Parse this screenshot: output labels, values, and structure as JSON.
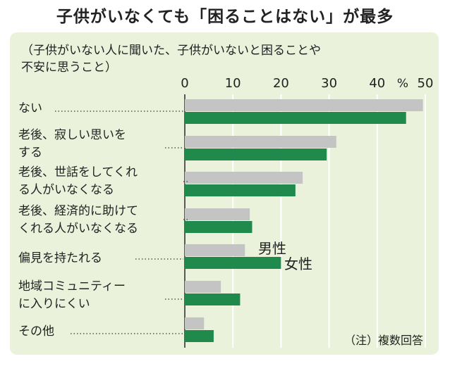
{
  "title": "子供がいなくても「困ることはない」が最多",
  "subtitle": "（子供がいない人に聞いた、子供がいないと困ることや\n不安に思うこと）",
  "note": "（注）複数回答",
  "colors": {
    "male": "#c4c4c4",
    "female": "#1f8a4c",
    "panel": "#eaf2dc",
    "grid": "#ffffff"
  },
  "chart_data": {
    "type": "bar",
    "orientation": "horizontal",
    "categories": [
      "ない",
      "老後、寂しい思いを\nする",
      "老後、世話をしてくれ\nる人がいなくなる",
      "老後、経済的に助けて\nくれる人がいなくなる",
      "偏見を持たれる",
      "地域コミュニティー\nに入りにくい",
      "その他"
    ],
    "series": [
      {
        "name": "男性",
        "values": [
          49.5,
          31.5,
          24.5,
          13.5,
          12.5,
          7.5,
          4
        ]
      },
      {
        "name": "女性",
        "values": [
          46,
          29.5,
          23,
          14,
          20,
          11.5,
          6
        ]
      }
    ],
    "xlim": [
      0,
      50
    ],
    "ticks": [
      "0",
      "10",
      "20",
      "30",
      "40",
      "50"
    ],
    "unit": "%",
    "grid": true
  }
}
